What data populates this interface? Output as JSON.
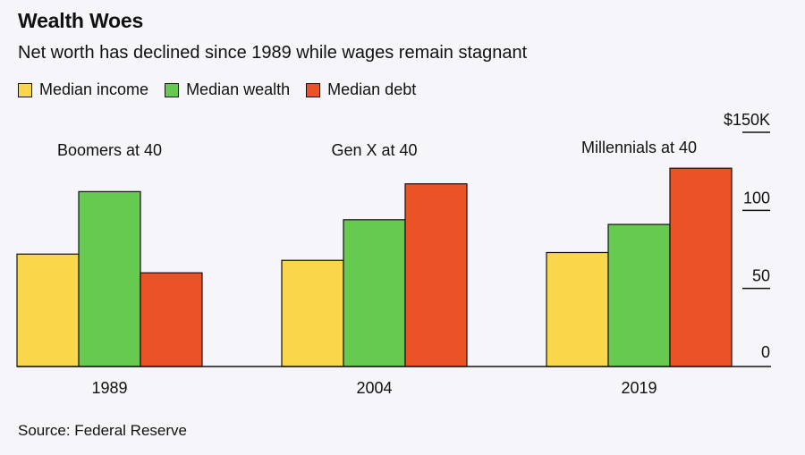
{
  "header": {
    "title": "Wealth Woes",
    "subtitle": "Net worth has declined since 1989 while wages remain stagnant"
  },
  "source": "Source: Federal Reserve",
  "chart_data": {
    "type": "bar",
    "categories": [
      "1989",
      "2004",
      "2019"
    ],
    "group_labels": [
      "Boomers at 40",
      "Gen X at 40",
      "Millennials at 40"
    ],
    "series": [
      {
        "name": "Median income",
        "color": "#f9d64a",
        "values": [
          72,
          68,
          73
        ]
      },
      {
        "name": "Median wealth",
        "color": "#66c950",
        "values": [
          112,
          94,
          91
        ]
      },
      {
        "name": "Median debt",
        "color": "#eb5226",
        "values": [
          60,
          117,
          127
        ]
      }
    ],
    "y_ticks": [
      {
        "value": 150,
        "label": "$150K"
      },
      {
        "value": 100,
        "label": "100"
      },
      {
        "value": 50,
        "label": "50"
      },
      {
        "value": 0,
        "label": "0"
      }
    ],
    "ylim": [
      0,
      150
    ],
    "legend_position": "top-left",
    "axis_position": "right"
  }
}
